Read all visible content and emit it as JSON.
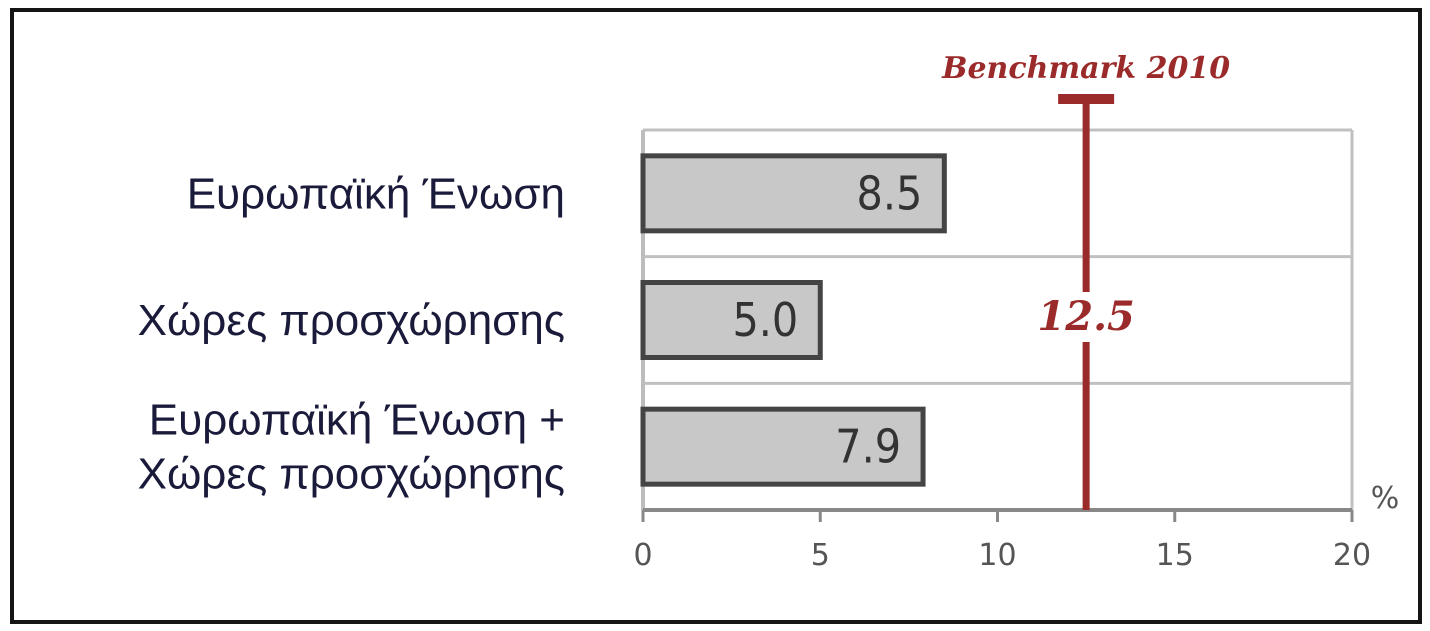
{
  "chart_data": {
    "type": "bar",
    "orientation": "horizontal",
    "categories": [
      "Ευρωπαϊκή Ένωση",
      "Χώρες προσχώρησης",
      "Ευρωπαϊκή Ένωση + Χώρες προσχώρησης"
    ],
    "category_lines": [
      [
        "Ευρωπαϊκή Ένωση"
      ],
      [
        "Χώρες προσχώρησης"
      ],
      [
        "Ευρωπαϊκή Ένωση +",
        "Χώρες προσχώρησης"
      ]
    ],
    "values": [
      8.5,
      5.0,
      7.9
    ],
    "value_labels": [
      "8.5",
      "5.0",
      "7.9"
    ],
    "xlim": [
      0,
      20
    ],
    "xticks": [
      0,
      5,
      10,
      15,
      20
    ],
    "xtick_labels": [
      "0",
      "5",
      "10",
      "15",
      "20"
    ],
    "unit": "%",
    "grid": "horizontal separators",
    "reference_line": {
      "label": "Benchmark 2010",
      "value": 12.5,
      "value_label": "12.5",
      "color": "#9b2a2a"
    },
    "bar_fill": "#c8c8c8",
    "bar_stroke": "#444444"
  }
}
